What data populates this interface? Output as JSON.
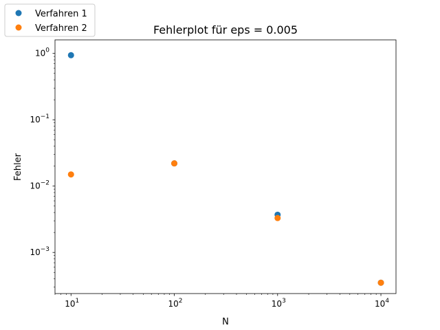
{
  "chart_data": {
    "type": "scatter",
    "title": "Fehlerplot für eps = 0.005",
    "xlabel": "N",
    "ylabel": "Fehler",
    "xscale": "log",
    "yscale": "log",
    "xlim": [
      7,
      14000
    ],
    "ylim": [
      0.00024,
      1.6
    ],
    "xticks": [
      {
        "value": 10,
        "base": "10",
        "exp": "1"
      },
      {
        "value": 100,
        "base": "10",
        "exp": "2"
      },
      {
        "value": 1000,
        "base": "10",
        "exp": "3"
      },
      {
        "value": 10000,
        "base": "10",
        "exp": "4"
      }
    ],
    "yticks": [
      {
        "value": 0.001,
        "base": "10",
        "exp": "−3"
      },
      {
        "value": 0.01,
        "base": "10",
        "exp": "−2"
      },
      {
        "value": 0.1,
        "base": "10",
        "exp": "−1"
      },
      {
        "value": 1,
        "base": "10",
        "exp": "0"
      }
    ],
    "grid": false,
    "legend_position": "top-left, outside axes",
    "series": [
      {
        "name": "Verfahren 1",
        "color": "#1f77b4",
        "x": [
          10,
          100,
          1000,
          10000
        ],
        "y": [
          0.94,
          0.022,
          0.0037,
          0.00035
        ]
      },
      {
        "name": "Verfahren 2",
        "color": "#ff7f0e",
        "x": [
          10,
          100,
          1000,
          10000
        ],
        "y": [
          0.015,
          0.022,
          0.0033,
          0.00035
        ]
      }
    ]
  }
}
